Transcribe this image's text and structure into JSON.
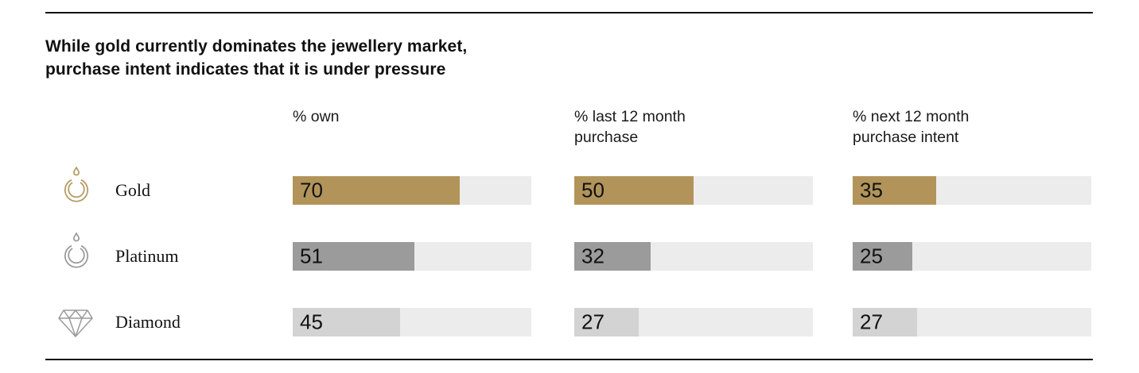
{
  "chart_data": {
    "type": "bar",
    "title": "While gold currently dominates the jewellery market, purchase intent indicates that it is under pressure",
    "title_lines": [
      "While gold currently dominates the jewellery market,",
      "purchase intent indicates that it is under pressure"
    ],
    "column_headers": [
      "% own",
      "% last 12 month\npurchase",
      "% next 12 month\npurchase intent"
    ],
    "xlim": [
      0,
      100
    ],
    "track_color": "#ececec",
    "rows": [
      {
        "label": "Gold",
        "icon": "gold-ring-icon",
        "icon_color": "#b49a63",
        "bar_color": "#b2945b",
        "values": [
          70,
          50,
          35
        ]
      },
      {
        "label": "Platinum",
        "icon": "platinum-ring-icon",
        "icon_color": "#9a9a9a",
        "bar_color": "#9b9b9b",
        "values": [
          51,
          32,
          25
        ]
      },
      {
        "label": "Diamond",
        "icon": "diamond-icon",
        "icon_color": "#9a9a9a",
        "bar_color": "#d3d3d3",
        "values": [
          45,
          27,
          27
        ]
      }
    ]
  }
}
